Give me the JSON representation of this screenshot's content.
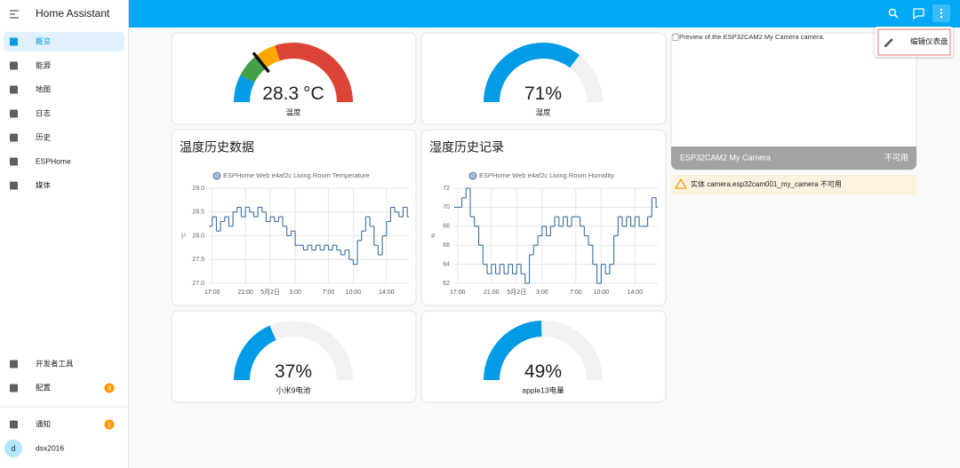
{
  "sidebar": {
    "title": "Home Assistant",
    "items": [
      {
        "label": "概览"
      },
      {
        "label": "能源"
      },
      {
        "label": "地图"
      },
      {
        "label": "日志"
      },
      {
        "label": "历史"
      },
      {
        "label": "ESPHome"
      },
      {
        "label": "媒体"
      }
    ],
    "bottom": [
      {
        "label": "开发者工具"
      },
      {
        "label": "配置",
        "badge": 3
      },
      {
        "label": "通知",
        "badge": 1
      }
    ],
    "user": {
      "initial": "d",
      "name": "dsx2016"
    }
  },
  "menu": {
    "items": [
      "编辑仪表盘"
    ]
  },
  "gauges": [
    {
      "value": 28.3,
      "unit": "°C",
      "name": "温度",
      "min": 0,
      "max": 100,
      "segments": [
        {
          "from": 0,
          "color": "#039be5"
        },
        {
          "from": 15,
          "color": "#43a047"
        },
        {
          "from": 28,
          "color": "#ffa600"
        },
        {
          "from": 40,
          "color": "#db4437"
        }
      ]
    },
    {
      "value": 71,
      "unit": "%",
      "name": "湿度",
      "min": 0,
      "max": 100,
      "color": "#039be5"
    },
    {
      "value": 37,
      "unit": "%",
      "name": "小米9电池",
      "min": 0,
      "max": 100,
      "color": "#039be5"
    },
    {
      "value": 49,
      "unit": "%",
      "name": "apple13电量",
      "min": 0,
      "max": 100,
      "color": "#039be5"
    }
  ],
  "history": [
    {
      "type": "line",
      "step": true,
      "title": "温度历史数据",
      "y_label": "°C",
      "x": [
        -0.4,
        0,
        0.5,
        1,
        1.5,
        2,
        2.5,
        3,
        3.5,
        4,
        4.5,
        5,
        5.5,
        6,
        6.5,
        7,
        7.5,
        8,
        8.5,
        9,
        9.5,
        10,
        10.5,
        11,
        11.5,
        12,
        12.5,
        13,
        13.5,
        14,
        14.5,
        15,
        15.5,
        16,
        16.5,
        17,
        17.5,
        18,
        18.5,
        19,
        19.5,
        20,
        20.5,
        21,
        21.5,
        22,
        22.5,
        23,
        23.5
      ],
      "series": [
        {
          "name": "ESPHome Web e4af2c Living Room Temperature",
          "color": "#3b6e9f",
          "values": [
            28.2,
            28.4,
            28.1,
            28.3,
            28.4,
            28.2,
            28.5,
            28.6,
            28.4,
            28.6,
            28.5,
            28.4,
            28.6,
            28.5,
            28.3,
            28.4,
            28.3,
            28.4,
            28.2,
            28.0,
            28.1,
            27.8,
            27.8,
            27.7,
            27.8,
            27.7,
            27.8,
            27.7,
            27.8,
            27.7,
            27.8,
            27.7,
            27.6,
            27.7,
            27.5,
            27.4,
            27.9,
            28.1,
            28.4,
            28.2,
            27.8,
            27.6,
            28.0,
            28.3,
            28.6,
            28.5,
            28.4,
            28.6,
            28.4
          ]
        }
      ],
      "xlim": [
        -0.4,
        23.7
      ],
      "xticks": [
        {
          "value": 0,
          "label": "17:00"
        },
        {
          "value": 4,
          "label": "21:00"
        },
        {
          "value": 7,
          "label": "5月2日"
        },
        {
          "value": 10,
          "label": "3:00"
        },
        {
          "value": 14,
          "label": "7:00"
        },
        {
          "value": 17,
          "label": "10:00"
        },
        {
          "value": 21,
          "label": "14:00"
        }
      ],
      "ylim": [
        27,
        29
      ],
      "yticks": [
        {
          "value": 27,
          "label": "27.0"
        },
        {
          "value": 27.5,
          "label": "27.5"
        },
        {
          "value": 28,
          "label": "28.0"
        },
        {
          "value": 28.5,
          "label": "28.5"
        },
        {
          "value": 29,
          "label": "29.0"
        }
      ],
      "grid": true
    },
    {
      "type": "line",
      "step": true,
      "title": "湿度历史记录",
      "y_label": "%",
      "x": [
        -0.4,
        0,
        0.5,
        1,
        1.5,
        2,
        2.5,
        3,
        3.5,
        4,
        4.5,
        5,
        5.5,
        6,
        6.5,
        7,
        7.5,
        8,
        8.5,
        9,
        9.5,
        10,
        10.5,
        11,
        11.5,
        12,
        12.5,
        13,
        13.5,
        14,
        14.5,
        15,
        15.5,
        16,
        16.5,
        17,
        17.5,
        18,
        18.5,
        19,
        19.5,
        20,
        20.5,
        21,
        21.5,
        22,
        22.5,
        23,
        23.5
      ],
      "series": [
        {
          "name": "ESPHome Web e4af2c Living Room Humidity",
          "color": "#3b6e9f",
          "values": [
            70,
            70,
            71,
            72,
            69,
            68,
            66,
            64,
            63,
            64,
            63,
            64,
            63,
            64,
            63,
            64,
            63,
            62,
            65,
            66,
            67,
            68,
            67,
            68,
            69,
            68,
            69,
            68,
            69,
            69,
            68,
            67,
            66,
            64,
            62,
            64,
            63,
            64,
            67,
            69,
            68,
            69,
            68,
            69,
            68,
            68,
            69,
            71,
            70
          ]
        }
      ],
      "xlim": [
        -0.4,
        23.7
      ],
      "xticks": [
        {
          "value": 0,
          "label": "17:00"
        },
        {
          "value": 4,
          "label": "21:00"
        },
        {
          "value": 7,
          "label": "5月2日"
        },
        {
          "value": 10,
          "label": "3:00"
        },
        {
          "value": 14,
          "label": "7:00"
        },
        {
          "value": 17,
          "label": "10:00"
        },
        {
          "value": 21,
          "label": "14:00"
        }
      ],
      "ylim": [
        62,
        72
      ],
      "yticks": [
        62,
        64,
        66,
        68,
        70,
        72
      ],
      "grid": true
    }
  ],
  "camera": {
    "alt": "Preview of the ESP32CAM2 My Camera camera.",
    "name": "ESP32CAM2 My Camera",
    "state": "不可用"
  },
  "warning": "实体 camera.esp32cam001_my_camera 不可用"
}
